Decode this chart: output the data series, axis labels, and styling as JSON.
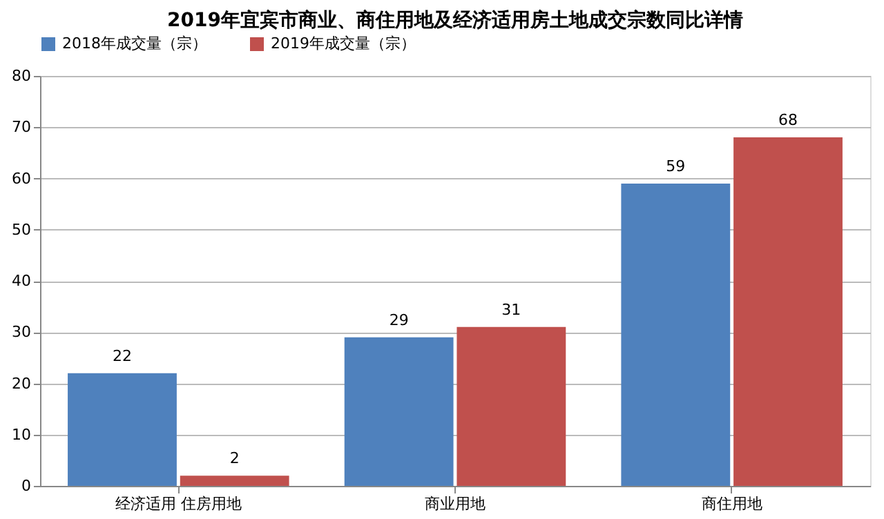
{
  "chart_data": {
    "type": "bar",
    "title": "2019年宜宾市商业、商住用地及经济适用房土地成交宗数同比详情",
    "categories": [
      "经济适用 住房用地",
      "商业用地",
      "商住用地"
    ],
    "series": [
      {
        "name": "2018年成交量（宗）",
        "color": "#4f81bd",
        "values": [
          22,
          29,
          59
        ]
      },
      {
        "name": "2019年成交量（宗）",
        "color": "#c0504d",
        "values": [
          2,
          31,
          68
        ]
      }
    ],
    "ylim": [
      0,
      80
    ],
    "yticks": [
      0,
      10,
      20,
      30,
      40,
      50,
      60,
      70,
      80
    ],
    "grid": "y",
    "legend": "top",
    "data_labels": true
  }
}
